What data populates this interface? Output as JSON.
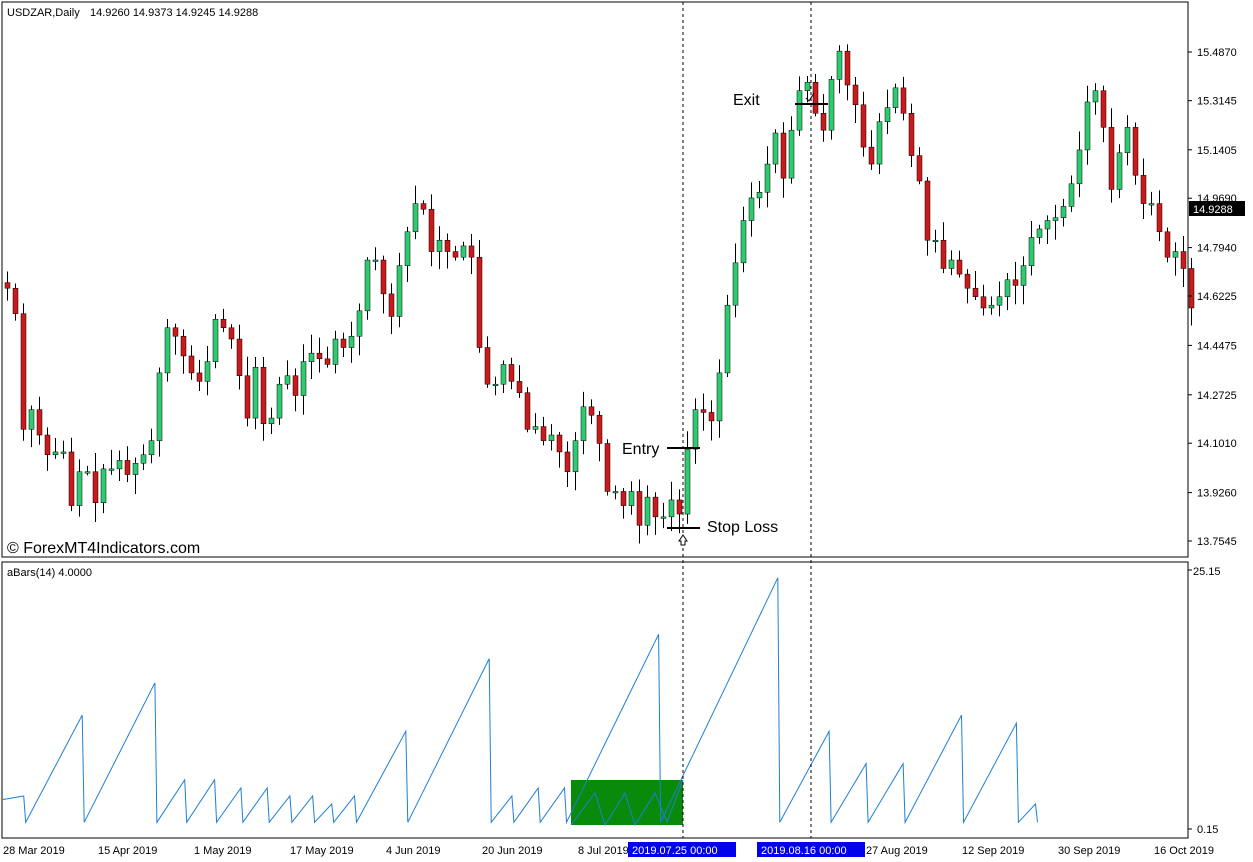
{
  "header": {
    "symbol": "USDZAR,Daily",
    "ohlc": "14.9260 14.9373 14.9245 14.9288"
  },
  "watermark": "© ForexMT4Indicators.com",
  "annotations": {
    "entry": "Entry",
    "exit": "Exit",
    "stop_loss": "Stop Loss"
  },
  "current_price": "14.9288",
  "indicator": {
    "label": "aBars(14) 4.0000",
    "max_label": "25.15",
    "min_label": "0.15"
  },
  "x_axis": {
    "dates": [
      "28 Mar 2019",
      "15 Apr 2019",
      "1 May 2019",
      "17 May 2019",
      "4 Jun 2019",
      "20 Jun 2019",
      "8 Jul 2019",
      "27 Aug 2019",
      "12 Sep 2019",
      "30 Sep 2019",
      "16 Oct 2019"
    ],
    "highlight_dates": [
      "2019.07.25 00:00",
      "2019.08.16 00:00"
    ]
  },
  "colors": {
    "bull": "#2ecc71",
    "bear": "#cc1a1a",
    "indicator_line": "#1e7fd6",
    "highlight_box": "#0a8a0a",
    "date_highlight": "#0000ee"
  },
  "chart_data": [
    {
      "type": "candlestick",
      "symbol": "USDZAR",
      "timeframe": "Daily",
      "y_ticks": [
        15.487,
        15.3145,
        15.1405,
        14.969,
        14.794,
        14.6225,
        14.4475,
        14.2725,
        14.101,
        13.926,
        13.7545
      ],
      "ylim": [
        13.69,
        15.56
      ],
      "closes": [
        14.65,
        14.56,
        14.15,
        14.22,
        14.13,
        14.06,
        14.07,
        14.07,
        13.88,
        14.0,
        14.0,
        13.89,
        14.01,
        14.01,
        14.04,
        13.99,
        14.03,
        14.06,
        14.11,
        14.35,
        14.51,
        14.48,
        14.41,
        14.35,
        14.32,
        14.39,
        14.54,
        14.51,
        14.47,
        14.34,
        14.19,
        14.37,
        14.17,
        14.19,
        14.31,
        14.34,
        14.27,
        14.39,
        14.42,
        14.4,
        14.38,
        14.47,
        14.44,
        14.48,
        14.57,
        14.75,
        14.75,
        14.63,
        14.55,
        14.73,
        14.85,
        14.95,
        14.93,
        14.78,
        14.82,
        14.78,
        14.76,
        14.8,
        14.76,
        14.44,
        14.31,
        14.31,
        14.38,
        14.32,
        14.28,
        14.15,
        14.16,
        14.11,
        14.13,
        14.07,
        14.0,
        14.11,
        14.23,
        14.2,
        14.1,
        13.93,
        13.93,
        13.88,
        13.93,
        13.81,
        13.91,
        13.84,
        13.84,
        13.9,
        13.85,
        14.08,
        14.22,
        14.21,
        14.18,
        14.35,
        14.59,
        14.74,
        14.89,
        14.97,
        14.99,
        15.09,
        15.2,
        15.04,
        15.21,
        15.35,
        15.38,
        15.27,
        15.21,
        15.39,
        15.49,
        15.37,
        15.3,
        15.15,
        15.09,
        15.24,
        15.29,
        15.36,
        15.27,
        15.12,
        15.03,
        14.82,
        14.82,
        14.72,
        14.75,
        14.7,
        14.65,
        14.62,
        14.58,
        14.59,
        14.62,
        14.68,
        14.66,
        14.73,
        14.83,
        14.86,
        14.89,
        14.9,
        14.94,
        15.02,
        15.14,
        15.31,
        15.35,
        15.22,
        15.0,
        15.13,
        15.22,
        15.05,
        14.95,
        14.95,
        14.85,
        14.76,
        14.78,
        14.72,
        14.58
      ],
      "annotation_prices": {
        "entry": 14.08,
        "exit": 15.3,
        "stop_loss": 13.8
      },
      "current": 14.9288
    },
    {
      "type": "line",
      "name": "aBars(14)",
      "ylim": [
        0.15,
        25.15
      ],
      "peaks": [
        3,
        13,
        17,
        5,
        5,
        4,
        4,
        3,
        3,
        2,
        3,
        11,
        20,
        3,
        4,
        4,
        23,
        30,
        11,
        7,
        7,
        13,
        12,
        2
      ]
    }
  ]
}
